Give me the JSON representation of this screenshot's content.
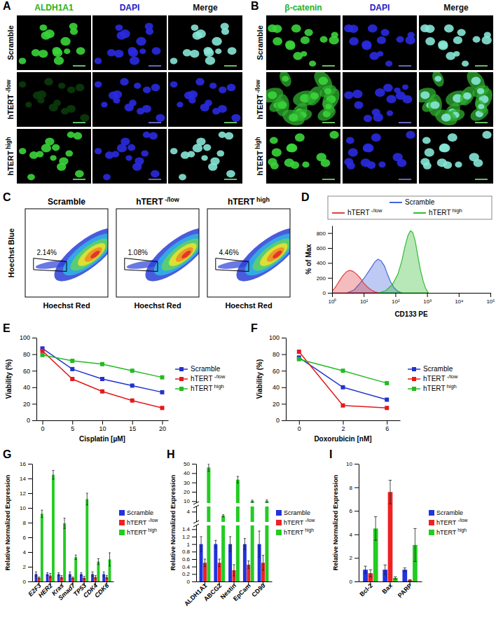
{
  "images": [
    {
      "title": "A",
      "columns": [
        "ALDH1A1",
        "DAPI",
        "Merge"
      ],
      "rows": [
        "Scramble",
        "hTERT -/low",
        "hTERT high"
      ]
    },
    {
      "title": "B",
      "columns": [
        "β-catenin",
        "DAPI",
        "Merge"
      ],
      "rows": [
        "Scramble",
        "hTERT -/low",
        "hTERT high"
      ]
    }
  ],
  "flow": {
    "title": "C",
    "x_label": "Hoechst Red",
    "y_label": "Hoechst Blue",
    "plots": [
      {
        "title": "Scramble",
        "gate": "2.14%"
      },
      {
        "title": "hTERT -/low",
        "gate": "1.08%"
      },
      {
        "title": "hTERT high",
        "gate": "4.46%"
      }
    ]
  },
  "chart_data": [
    {
      "title": "D",
      "type": "area",
      "x_label": "CD133 PE",
      "y_label": "% of Max",
      "log": "x",
      "legend": "top",
      "xlim": [
        1,
        100000
      ],
      "xticks": [
        {
          "value": 1,
          "label": "10⁰"
        },
        {
          "value": 10,
          "label": "10¹"
        },
        {
          "value": 100,
          "label": "10²"
        },
        {
          "value": 1000,
          "label": "10³"
        },
        {
          "value": 10000,
          "label": "10⁴"
        },
        {
          "value": 100000,
          "label": "10⁵"
        }
      ],
      "ylim": [
        0,
        900
      ],
      "yticks": [
        0,
        200,
        400,
        600,
        800
      ],
      "series": [
        {
          "name": "Scramble",
          "color": "#4466dd",
          "x": [
            3,
            5,
            7,
            10,
            14,
            18,
            22,
            28,
            35,
            45,
            56,
            70,
            90,
            120,
            160
          ],
          "values": [
            0,
            40,
            110,
            190,
            280,
            350,
            410,
            450,
            430,
            360,
            250,
            150,
            70,
            20,
            0
          ]
        },
        {
          "name": "hTERT -/low",
          "color": "#e04040",
          "x": [
            1,
            1.3,
            1.7,
            2.2,
            2.8,
            3.5,
            4.5,
            6,
            8,
            10,
            13,
            17,
            22,
            30
          ],
          "values": [
            20,
            80,
            160,
            230,
            280,
            300,
            290,
            250,
            190,
            130,
            80,
            40,
            15,
            0
          ]
        },
        {
          "name": "hTERT high",
          "color": "#33bb33",
          "x": [
            30,
            50,
            80,
            120,
            160,
            200,
            250,
            300,
            350,
            420,
            500,
            600,
            750,
            900,
            1100
          ],
          "values": [
            0,
            30,
            110,
            250,
            430,
            620,
            770,
            830,
            810,
            700,
            520,
            330,
            160,
            60,
            0
          ]
        }
      ]
    },
    {
      "title": "E",
      "type": "line",
      "x_label": "Cisplatin [µM]",
      "y_label": "Viability (%)",
      "marker": "square",
      "legend": "right",
      "x": [
        0,
        5,
        10,
        15,
        20
      ],
      "xlim": [
        -1,
        21
      ],
      "xticks": [
        0,
        5,
        10,
        15,
        20
      ],
      "ylim": [
        0,
        100
      ],
      "yticks": [
        0,
        20,
        40,
        60,
        80,
        100
      ],
      "series": [
        {
          "name": "Scramble",
          "color": "#2233cc",
          "values": [
            87,
            62,
            50,
            42,
            34
          ]
        },
        {
          "name": "hTERT -/low",
          "color": "#e41a1c",
          "values": [
            84,
            50,
            35,
            24,
            15
          ]
        },
        {
          "name": "hTERT high",
          "color": "#22bb22",
          "values": [
            79,
            72,
            68,
            60,
            52
          ]
        }
      ]
    },
    {
      "title": "F",
      "type": "line",
      "x_label": "Doxorubicin [nM]",
      "y_label": "Viability (%)",
      "marker": "square",
      "legend": "right",
      "categories": [
        "0",
        "2",
        "6"
      ],
      "ylim": [
        0,
        100
      ],
      "yticks": [
        0,
        20,
        40,
        60,
        80,
        100
      ],
      "series": [
        {
          "name": "Scramble",
          "color": "#2233cc",
          "values": [
            76,
            40,
            25
          ]
        },
        {
          "name": "hTERT -/low",
          "color": "#e41a1c",
          "values": [
            83,
            18,
            15
          ]
        },
        {
          "name": "hTERT high",
          "color": "#22bb22",
          "values": [
            74,
            60,
            45
          ]
        }
      ]
    },
    {
      "title": "G",
      "type": "bar",
      "y_label": "Relative Normalized Expression",
      "legend": "right",
      "categories": [
        "E2F3",
        "HER2",
        "Kras",
        "Smad7",
        "TP53",
        "CDK4",
        "CDK6"
      ],
      "ylim": [
        0,
        16
      ],
      "yticks": [
        0,
        2,
        4,
        6,
        8,
        10,
        12,
        14,
        16
      ],
      "series": [
        {
          "name": "Scramble",
          "color": "#2233dd",
          "values": [
            1,
            1,
            1,
            1,
            1,
            1,
            1
          ],
          "errors": [
            0.3,
            0.2,
            0.2,
            0.3,
            0.2,
            0.3,
            0.3
          ]
        },
        {
          "name": "hTERT -/low",
          "color": "#ee2222",
          "values": [
            0.5,
            0.8,
            0.6,
            0.5,
            0.5,
            0.6,
            0.6
          ],
          "errors": [
            0.1,
            0.3,
            0.2,
            0.1,
            0.2,
            0.2,
            0.2
          ]
        },
        {
          "name": "hTERT high",
          "color": "#22cc22",
          "values": [
            9.2,
            14.5,
            7.9,
            3.3,
            11.2,
            2.7,
            3.0
          ],
          "errors": [
            0.5,
            0.6,
            0.7,
            0.3,
            0.8,
            0.4,
            0.9
          ]
        }
      ]
    },
    {
      "title": "H",
      "type": "bar",
      "y_label": "Relative Normalized Expression",
      "legend": "right",
      "categories": [
        "ALDH1A1",
        "ABCG2",
        "Nestin",
        "EpCam",
        "CD90"
      ],
      "ylim": [
        0,
        50
      ],
      "ybreak": [
        [
          1.5,
          2
        ],
        [
          5,
          8
        ]
      ],
      "yticks": [
        0,
        0.2,
        0.4,
        0.6,
        0.8,
        1,
        1.2,
        1.4,
        4,
        10,
        20,
        30,
        40,
        50
      ],
      "series": [
        {
          "name": "Scramble",
          "color": "#2233dd",
          "values": [
            1,
            1,
            1,
            1,
            1
          ],
          "errors": [
            0.2,
            0.1,
            0.2,
            0.15,
            0.35
          ]
        },
        {
          "name": "hTERT -/low",
          "color": "#ee2222",
          "values": [
            0.5,
            0.5,
            0.3,
            0.45,
            0.5
          ],
          "errors": [
            0.1,
            0.1,
            0.15,
            0.1,
            0.2
          ]
        },
        {
          "name": "hTERT high",
          "color": "#22cc22",
          "values": [
            46,
            3.2,
            33,
            10,
            10
          ],
          "errors": [
            4,
            0.2,
            3.5,
            1,
            1.2
          ]
        }
      ]
    },
    {
      "title": "I",
      "type": "bar",
      "y_label": "Relative Normalized Expression",
      "legend": "right",
      "categories": [
        "Bcl-2",
        "Bax",
        "PARP"
      ],
      "ylim": [
        0,
        10
      ],
      "yticks": [
        0,
        2,
        4,
        6,
        8,
        10
      ],
      "series": [
        {
          "name": "Scramble",
          "color": "#2233dd",
          "values": [
            1,
            1,
            1
          ],
          "errors": [
            0.3,
            0.4,
            0.15
          ]
        },
        {
          "name": "hTERT -/low",
          "color": "#ee2222",
          "values": [
            0.7,
            7.6,
            0.1
          ],
          "errors": [
            0.3,
            1.0,
            0.05
          ]
        },
        {
          "name": "hTERT high",
          "color": "#22cc22",
          "values": [
            4.5,
            0.3,
            3.1
          ],
          "errors": [
            1.0,
            0.1,
            1.4
          ]
        }
      ]
    }
  ]
}
